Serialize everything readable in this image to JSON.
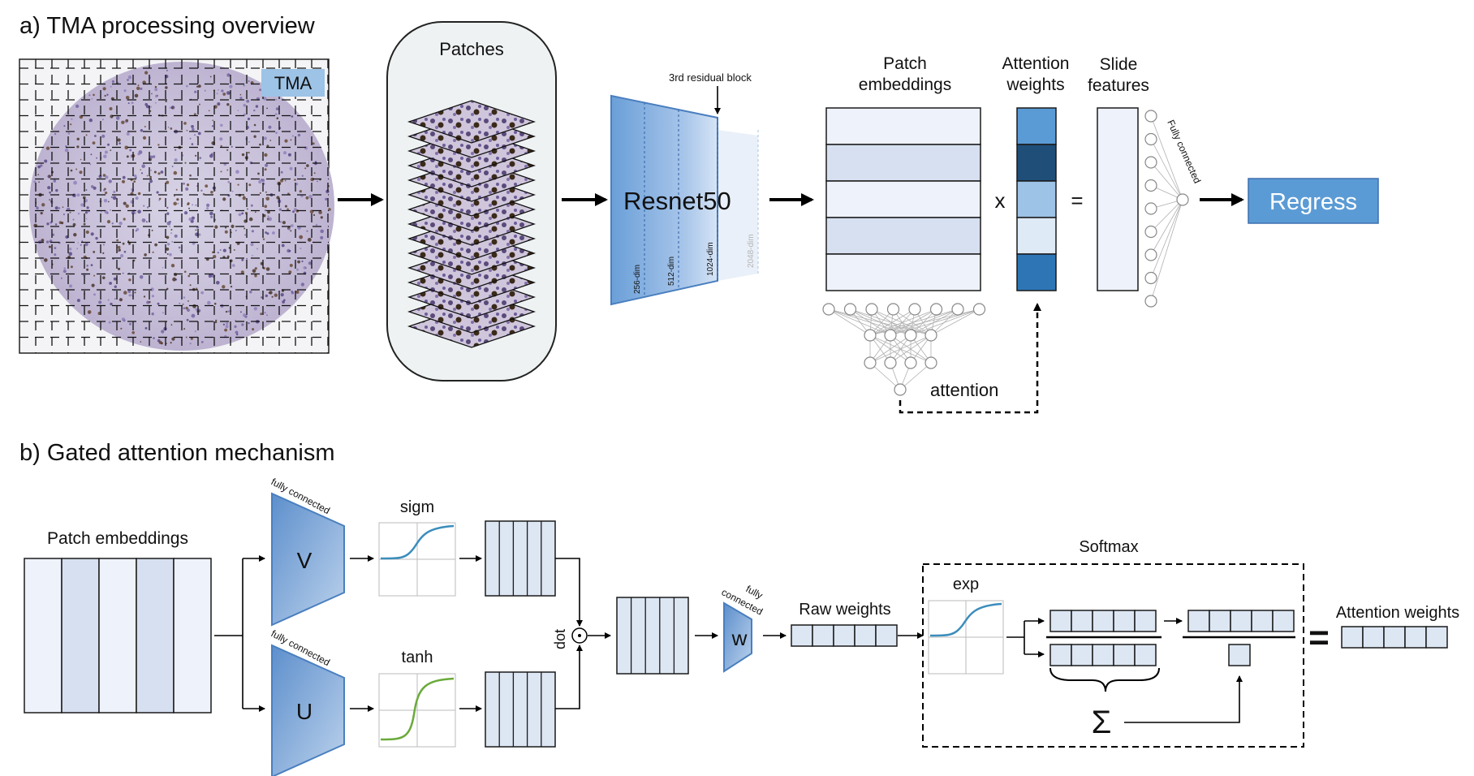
{
  "section_a": {
    "title": "a) TMA processing overview",
    "tma_label": "TMA",
    "patches_label": "Patches",
    "residual_block_label": "3rd residual block",
    "resnet_label": "Resnet50",
    "dims": [
      "256-dim",
      "512-dim",
      "1024-dim",
      "2048-dim"
    ],
    "patch_embeddings_label": "Patch\nembeddings",
    "attention_weights_label": "Attention\nweights",
    "slide_features_label": "Slide\nfeatures",
    "fully_connected_label": "Fully connected",
    "multiply_symbol": "x",
    "equals_symbol": "=",
    "attention_label": "attention",
    "regress_label": "Regress",
    "attention_weight_colors": [
      "#5b9bd5",
      "#1f4e79",
      "#9dc3e6",
      "#deebf7",
      "#2e75b6"
    ]
  },
  "section_b": {
    "title": "b) Gated attention mechanism",
    "patch_embeddings_label": "Patch embeddings",
    "fully_connected_label": "fully connected",
    "v_label": "V",
    "u_label": "U",
    "w_label": "w",
    "sigm_label": "sigm",
    "tanh_label": "tanh",
    "dot_label": "dot",
    "dot_symbol": "⊙",
    "raw_weights_label": "Raw weights",
    "softmax_label": "Softmax",
    "exp_label": "exp",
    "sum_symbol": "Σ",
    "equals_symbol": "=",
    "attention_weights_label": "Attention weights",
    "sigm_color": "#3c8dbc",
    "tanh_color": "#6aaa3a"
  }
}
